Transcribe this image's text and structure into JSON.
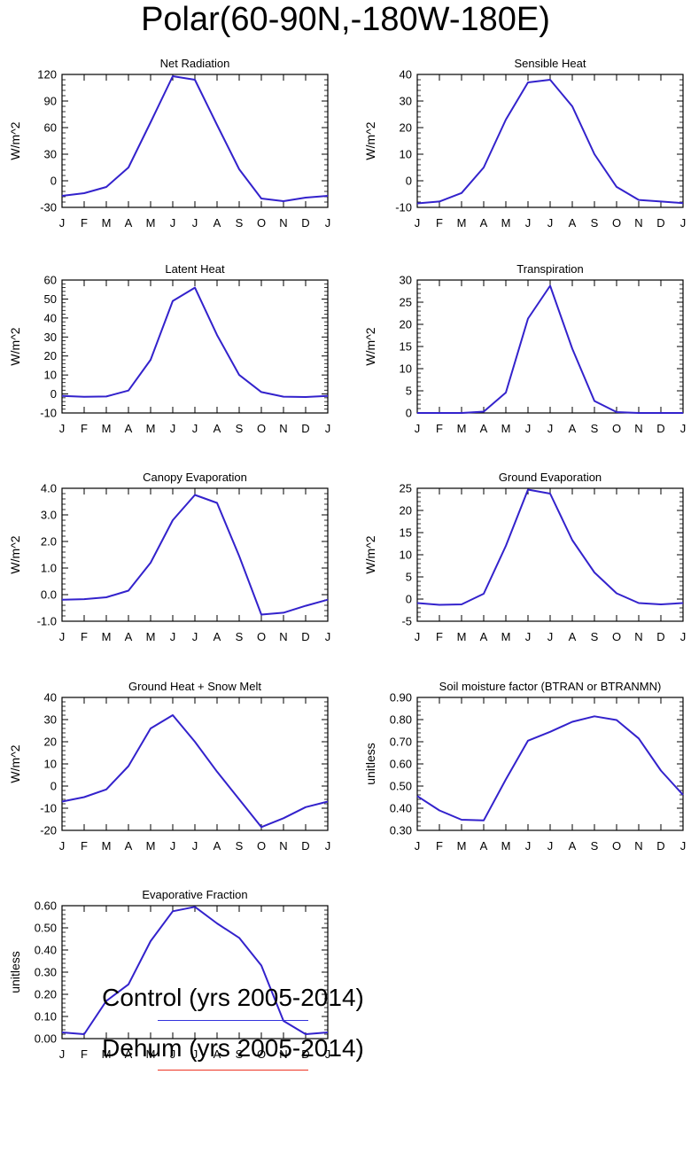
{
  "figure": {
    "title": "Polar(60-90N,-180W-180E)",
    "month_labels": [
      "J",
      "F",
      "M",
      "A",
      "M",
      "J",
      "J",
      "A",
      "S",
      "O",
      "N",
      "D",
      "J"
    ]
  },
  "legend": {
    "items": [
      {
        "label": "Control (yrs 2005-2014)",
        "color": "#3333dd"
      },
      {
        "label": "Dehum (yrs 2005-2014)",
        "color": "#ee3322"
      }
    ]
  },
  "line_color": "#3322cc",
  "chart_data": [
    {
      "type": "line",
      "title": "Net Radiation",
      "ylabel": "W/m^2",
      "ylim": [
        -30,
        120
      ],
      "yticks": [
        -30,
        0,
        30,
        60,
        90,
        120
      ],
      "tick_decimals": 0,
      "values": [
        -17,
        -14,
        -7,
        15,
        66,
        118,
        114,
        63,
        13,
        -20,
        -23,
        -19,
        -17
      ]
    },
    {
      "type": "line",
      "title": "Sensible Heat",
      "ylabel": "W/m^2",
      "ylim": [
        -10,
        40
      ],
      "yticks": [
        -10,
        0,
        10,
        20,
        30,
        40
      ],
      "tick_decimals": 0,
      "values": [
        -8.5,
        -7.8,
        -4.6,
        5,
        23,
        37,
        38,
        28,
        10,
        -2.3,
        -7.2,
        -7.8,
        -8.4
      ]
    },
    {
      "type": "line",
      "title": "Latent Heat",
      "ylabel": "W/m^2",
      "ylim": [
        -10,
        60
      ],
      "yticks": [
        -10,
        0,
        10,
        20,
        30,
        40,
        50,
        60
      ],
      "tick_decimals": 0,
      "values": [
        -1,
        -1.5,
        -1.3,
        1.8,
        18,
        49,
        56,
        31,
        10,
        1,
        -1.4,
        -1.6,
        -1
      ]
    },
    {
      "type": "line",
      "title": "Transpiration",
      "ylabel": "W/m^2",
      "ylim": [
        0,
        30
      ],
      "yticks": [
        0,
        5,
        10,
        15,
        20,
        25,
        30
      ],
      "tick_decimals": 0,
      "values": [
        0,
        0,
        0,
        0.3,
        4.6,
        21.3,
        28.7,
        14.5,
        2.7,
        0.2,
        0,
        0,
        0
      ]
    },
    {
      "type": "line",
      "title": "Canopy Evaporation",
      "ylabel": "W/m^2",
      "ylim": [
        -1,
        4
      ],
      "yticks": [
        -1,
        0,
        1,
        2,
        3,
        4
      ],
      "tick_decimals": 1,
      "values": [
        -0.19,
        -0.17,
        -0.1,
        0.15,
        1.2,
        2.8,
        3.75,
        3.45,
        1.45,
        -0.75,
        -0.68,
        -0.42,
        -0.19
      ]
    },
    {
      "type": "line",
      "title": "Ground Evaporation",
      "ylabel": "W/m^2",
      "ylim": [
        -5,
        25
      ],
      "yticks": [
        -5,
        0,
        5,
        10,
        15,
        20,
        25
      ],
      "tick_decimals": 0,
      "values": [
        -0.9,
        -1.3,
        -1.2,
        1.2,
        12,
        24.7,
        23.8,
        13.3,
        6,
        1.3,
        -0.9,
        -1.2,
        -0.9
      ]
    },
    {
      "type": "line",
      "title": "Ground Heat + Snow Melt",
      "ylabel": "W/m^2",
      "ylim": [
        -20,
        40
      ],
      "yticks": [
        -20,
        -10,
        0,
        10,
        20,
        30,
        40
      ],
      "tick_decimals": 0,
      "values": [
        -7,
        -5,
        -1.5,
        9,
        26,
        32,
        20,
        6.5,
        -6,
        -18.5,
        -14.5,
        -9.5,
        -7
      ]
    },
    {
      "type": "line",
      "title": "Soil moisture factor (BTRAN or BTRANMN)",
      "ylabel": "unitless",
      "ylim": [
        0.3,
        0.9
      ],
      "yticks": [
        0.3,
        0.4,
        0.5,
        0.6,
        0.7,
        0.8,
        0.9
      ],
      "tick_decimals": 2,
      "values": [
        0.455,
        0.39,
        0.348,
        0.345,
        0.53,
        0.705,
        0.745,
        0.79,
        0.815,
        0.798,
        0.715,
        0.57,
        0.46
      ]
    },
    {
      "type": "line",
      "title": "Evaporative Fraction",
      "ylabel": "unitless",
      "ylim": [
        0,
        0.6
      ],
      "yticks": [
        0,
        0.1,
        0.2,
        0.3,
        0.4,
        0.5,
        0.6
      ],
      "tick_decimals": 2,
      "values": [
        0.028,
        0.02,
        0.17,
        0.245,
        0.44,
        0.575,
        0.595,
        0.52,
        0.455,
        0.33,
        0.08,
        0.02,
        0.028
      ]
    }
  ]
}
